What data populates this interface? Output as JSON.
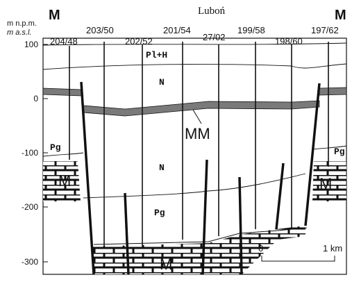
{
  "header": {
    "title": "Luboń",
    "left_end": "M",
    "right_end": "M"
  },
  "axis": {
    "label_pl": "m n.p.m.",
    "label_en": "m a.s.l.",
    "ticks": [
      "100",
      "0",
      "-100",
      "-200",
      "-300"
    ]
  },
  "wells": [
    "204/48",
    "203/50",
    "202/52",
    "201/54",
    "27/02",
    "199/58",
    "198/60",
    "197/62"
  ],
  "formations": {
    "pl_h": "Pl+H",
    "n_upper": "N",
    "mm": "MM",
    "pg_left": "Pg",
    "pg_right": "Pg",
    "n_lower": "N",
    "pg_lower": "Pg",
    "m_left": "M",
    "m_right": "M",
    "m_bottom": "M"
  },
  "scale": {
    "start": "0",
    "end": "1 km"
  }
}
